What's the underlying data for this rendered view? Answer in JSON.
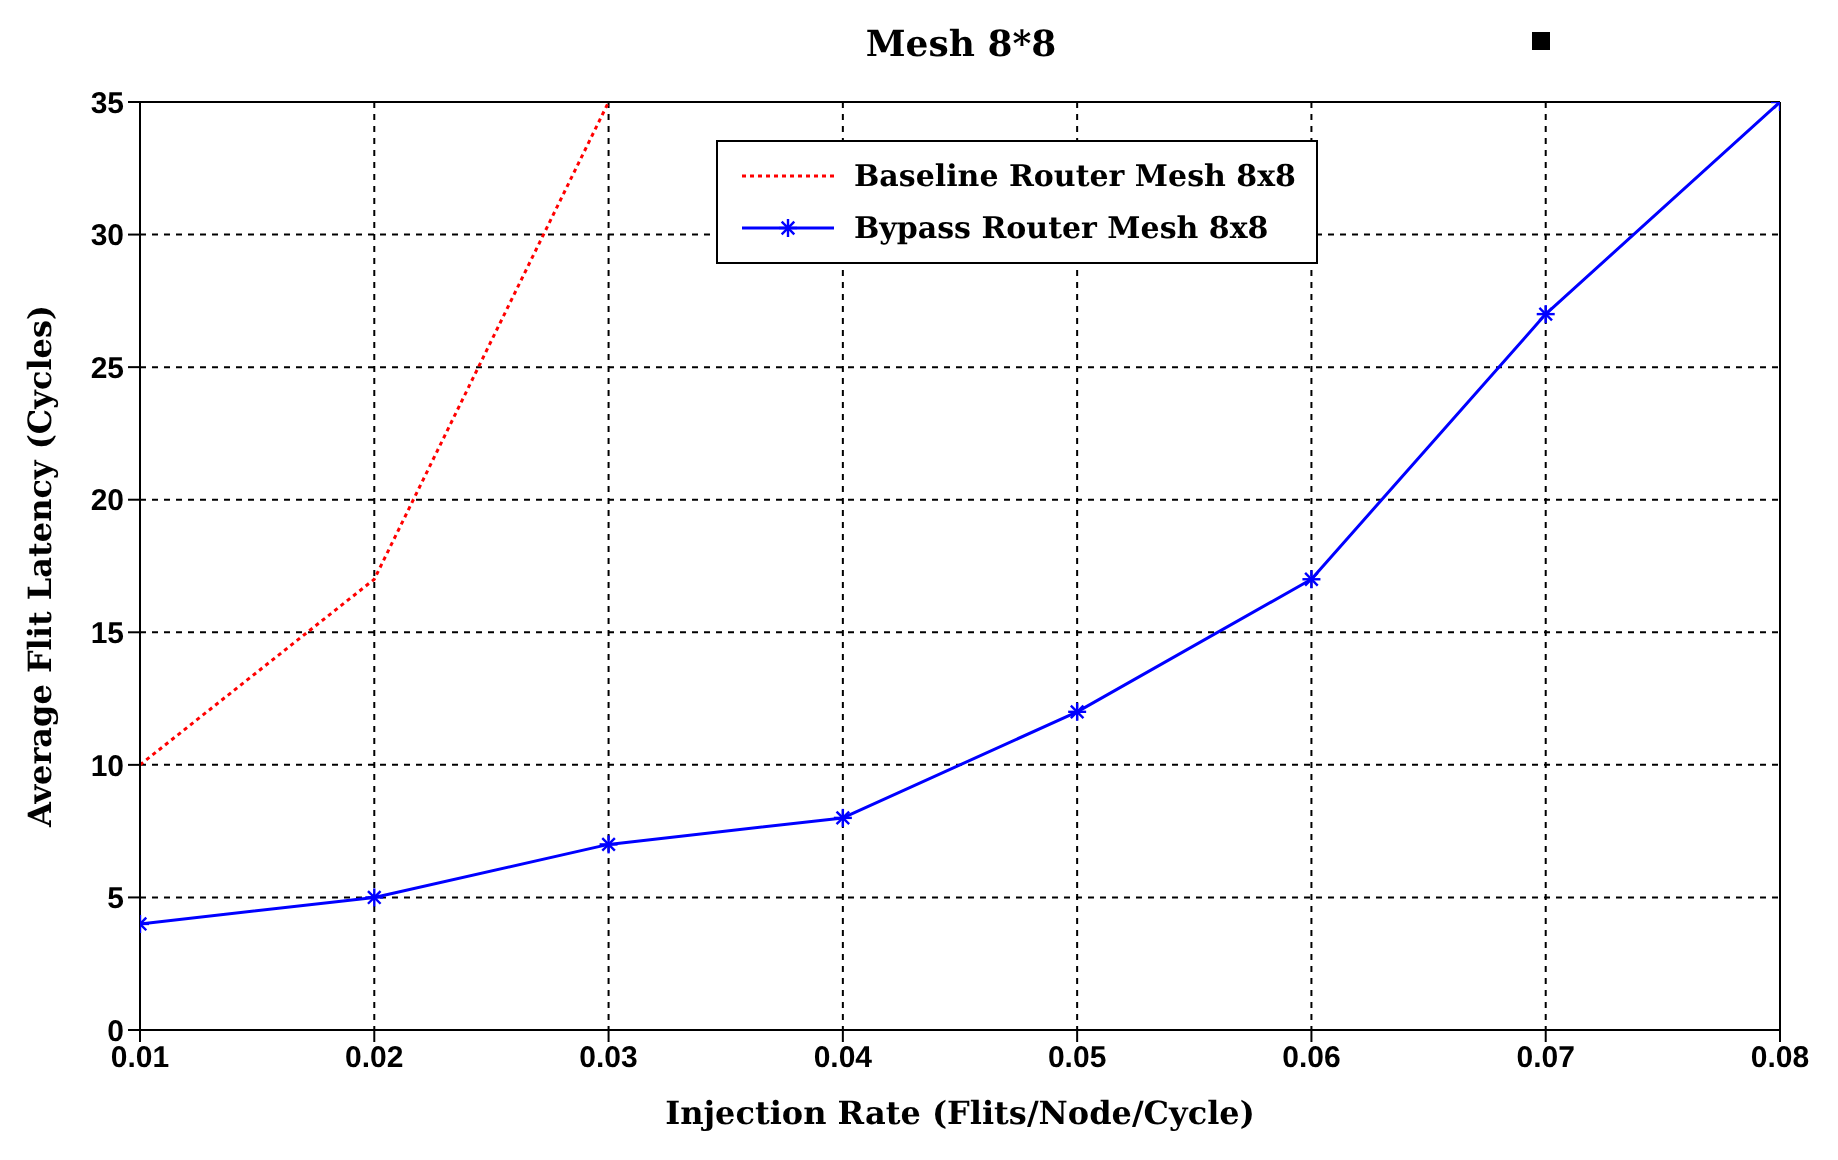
{
  "chart_data": {
    "type": "line",
    "title": "Mesh 8*8",
    "xlabel": "Injection Rate (Flits/Node/Cycle)",
    "ylabel": "Average Flit Latency (Cycles)",
    "x": [
      0.01,
      0.02,
      0.03,
      0.04,
      0.05,
      0.06,
      0.07,
      0.08
    ],
    "series": [
      {
        "name": "Baseline Router Mesh 8x8",
        "color": "#ff0000",
        "values": [
          10,
          17,
          35,
          null,
          null,
          null,
          null,
          null
        ],
        "line_style": "dotted",
        "marker": "none"
      },
      {
        "name": "Bypass Router Mesh 8x8",
        "color": "#0000ff",
        "values": [
          4,
          5,
          7,
          8,
          12,
          17,
          27,
          35
        ],
        "line_style": "solid",
        "marker": "cross"
      }
    ],
    "xlim": [
      0.01,
      0.08
    ],
    "xticks": [
      0.01,
      0.02,
      0.03,
      0.04,
      0.05,
      0.06,
      0.07,
      0.08
    ],
    "ylim": [
      0,
      35
    ],
    "yticks": [
      0,
      5,
      10,
      15,
      20,
      25,
      30,
      35
    ],
    "grid": true,
    "legend": "top"
  }
}
